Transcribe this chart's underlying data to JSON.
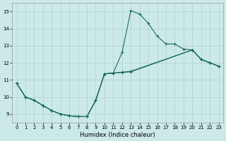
{
  "xlabel": "Humidex (Indice chaleur)",
  "xlim": [
    -0.5,
    23.5
  ],
  "ylim": [
    8.5,
    15.5
  ],
  "xticks": [
    0,
    1,
    2,
    3,
    4,
    5,
    6,
    7,
    8,
    9,
    10,
    11,
    12,
    13,
    14,
    15,
    16,
    17,
    18,
    19,
    20,
    21,
    22,
    23
  ],
  "yticks": [
    9,
    10,
    11,
    12,
    13,
    14,
    15
  ],
  "bg_color": "#cce9e9",
  "grid_color_major": "#b0d0d0",
  "grid_color_minor": "#c4e0e0",
  "line_color": "#1a6b5a",
  "series1_x": [
    0,
    1,
    2,
    3,
    4,
    5,
    6,
    7,
    8,
    9,
    10,
    11,
    12,
    13,
    14,
    15,
    16,
    17,
    18,
    19,
    20,
    21,
    22,
    23
  ],
  "series1_y": [
    10.8,
    10.0,
    9.8,
    9.5,
    9.2,
    9.0,
    8.9,
    8.85,
    8.85,
    9.8,
    11.35,
    11.4,
    12.6,
    15.05,
    14.85,
    14.3,
    13.55,
    13.1,
    13.1,
    12.8,
    12.75,
    12.2,
    12.0,
    11.8
  ],
  "series2_x": [
    0,
    1,
    2,
    3,
    4,
    5,
    6,
    7,
    8,
    9,
    10,
    11,
    12,
    13,
    20,
    21,
    22,
    23
  ],
  "series2_y": [
    10.8,
    10.0,
    9.8,
    9.5,
    9.2,
    9.0,
    8.9,
    8.85,
    8.85,
    9.8,
    11.35,
    11.4,
    11.45,
    11.5,
    12.75,
    12.2,
    12.0,
    11.8
  ],
  "series3_x": [
    0,
    1,
    2,
    3,
    4,
    5,
    6,
    7,
    8,
    9,
    10,
    11,
    12,
    13,
    20,
    21,
    22,
    23
  ],
  "series3_y": [
    10.8,
    10.0,
    9.8,
    9.5,
    9.2,
    9.0,
    8.9,
    8.85,
    8.85,
    9.8,
    11.35,
    11.4,
    11.43,
    11.47,
    12.75,
    12.2,
    12.0,
    11.8
  ]
}
